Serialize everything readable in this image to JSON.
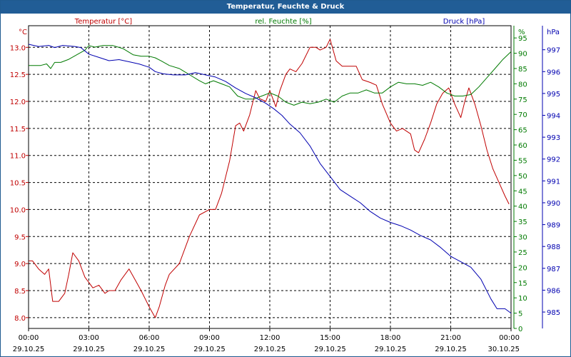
{
  "window": {
    "title": "Temperatur, Feuchte & Druck"
  },
  "colors": {
    "temperature": "#c00000",
    "humidity": "#007a00",
    "pressure": "#0000b0",
    "grid": "#000000",
    "title_bar": "#215d96"
  },
  "chart_data": {
    "type": "line",
    "title": "Temperatur, Feuchte & Druck",
    "x_hours_range": [
      0,
      24
    ],
    "x_ticks": [
      {
        "h": 0,
        "time": "00:00",
        "date": "29.10.25"
      },
      {
        "h": 3,
        "time": "03:00",
        "date": "29.10.25"
      },
      {
        "h": 6,
        "time": "06:00",
        "date": "29.10.25"
      },
      {
        "h": 9,
        "time": "09:00",
        "date": "29.10.25"
      },
      {
        "h": 12,
        "time": "12:00",
        "date": "29.10.25"
      },
      {
        "h": 15,
        "time": "15:00",
        "date": "29.10.25"
      },
      {
        "h": 18,
        "time": "18:00",
        "date": "29.10.25"
      },
      {
        "h": 21,
        "time": "21:00",
        "date": "29.10.25"
      },
      {
        "h": 24,
        "time": "00:00",
        "date": "30.10.25"
      }
    ],
    "axes": {
      "temperature": {
        "label": "Temperatur [°C]",
        "unit": "°C",
        "ylim": [
          7.8,
          13.4
        ],
        "ticks": [
          "13.0",
          "12.5",
          "12.0",
          "11.5",
          "11.0",
          "10.5",
          "10.0",
          "9.5",
          "9.0",
          "8.5",
          "8.0"
        ]
      },
      "humidity": {
        "label": "rel. Feuchte [%]",
        "unit": "%",
        "ylim": [
          0,
          99
        ],
        "ticks": [
          "95",
          "90",
          "85",
          "80",
          "75",
          "70",
          "65",
          "60",
          "55",
          "50",
          "45",
          "40",
          "35",
          "30",
          "25",
          "20",
          "15",
          "10",
          "5",
          "0"
        ],
        "top_label": "%"
      },
      "pressure": {
        "label": "Druck [hPa]",
        "unit": "hPa",
        "ylim": [
          984.25,
          998.1
        ],
        "ticks": [
          "997",
          "996",
          "995",
          "994",
          "993",
          "992",
          "991",
          "990",
          "989",
          "988",
          "987",
          "986",
          "985"
        ]
      }
    },
    "series": [
      {
        "name": "Temperatur [°C]",
        "axis": "temperature",
        "points": [
          [
            0,
            9.05
          ],
          [
            0.2,
            9.05
          ],
          [
            0.5,
            8.9
          ],
          [
            0.8,
            8.8
          ],
          [
            1.0,
            8.9
          ],
          [
            1.2,
            8.3
          ],
          [
            1.5,
            8.3
          ],
          [
            1.8,
            8.45
          ],
          [
            2.0,
            8.8
          ],
          [
            2.2,
            9.2
          ],
          [
            2.5,
            9.05
          ],
          [
            2.8,
            8.75
          ],
          [
            3.0,
            8.65
          ],
          [
            3.2,
            8.55
          ],
          [
            3.5,
            8.6
          ],
          [
            3.8,
            8.45
          ],
          [
            4.0,
            8.5
          ],
          [
            4.3,
            8.5
          ],
          [
            4.6,
            8.7
          ],
          [
            5.0,
            8.9
          ],
          [
            5.3,
            8.7
          ],
          [
            5.6,
            8.5
          ],
          [
            6.0,
            8.2
          ],
          [
            6.3,
            8.0
          ],
          [
            6.5,
            8.2
          ],
          [
            6.8,
            8.6
          ],
          [
            7.0,
            8.8
          ],
          [
            7.5,
            9.0
          ],
          [
            8.0,
            9.5
          ],
          [
            8.5,
            9.9
          ],
          [
            9.0,
            10.0
          ],
          [
            9.3,
            10.0
          ],
          [
            9.6,
            10.3
          ],
          [
            10.0,
            10.9
          ],
          [
            10.3,
            11.55
          ],
          [
            10.5,
            11.6
          ],
          [
            10.7,
            11.45
          ],
          [
            11.0,
            11.75
          ],
          [
            11.3,
            12.2
          ],
          [
            11.5,
            12.05
          ],
          [
            11.8,
            12.0
          ],
          [
            12.0,
            12.2
          ],
          [
            12.3,
            11.9
          ],
          [
            12.5,
            12.2
          ],
          [
            12.8,
            12.5
          ],
          [
            13.0,
            12.6
          ],
          [
            13.3,
            12.55
          ],
          [
            13.6,
            12.7
          ],
          [
            14.0,
            13.0
          ],
          [
            14.3,
            13.0
          ],
          [
            14.5,
            12.95
          ],
          [
            14.8,
            13.0
          ],
          [
            15.0,
            13.15
          ],
          [
            15.3,
            12.75
          ],
          [
            15.6,
            12.65
          ],
          [
            16.0,
            12.65
          ],
          [
            16.3,
            12.65
          ],
          [
            16.6,
            12.4
          ],
          [
            17.0,
            12.35
          ],
          [
            17.3,
            12.3
          ],
          [
            17.6,
            11.95
          ],
          [
            18.0,
            11.6
          ],
          [
            18.3,
            11.45
          ],
          [
            18.6,
            11.5
          ],
          [
            19.0,
            11.4
          ],
          [
            19.2,
            11.1
          ],
          [
            19.4,
            11.05
          ],
          [
            19.7,
            11.3
          ],
          [
            20.0,
            11.6
          ],
          [
            20.3,
            11.95
          ],
          [
            20.6,
            12.15
          ],
          [
            20.9,
            12.25
          ],
          [
            21.2,
            11.95
          ],
          [
            21.5,
            11.7
          ],
          [
            21.7,
            12.0
          ],
          [
            21.9,
            12.25
          ],
          [
            22.2,
            11.95
          ],
          [
            22.5,
            11.55
          ],
          [
            22.8,
            11.1
          ],
          [
            23.1,
            10.75
          ],
          [
            23.4,
            10.5
          ],
          [
            23.7,
            10.25
          ],
          [
            23.9,
            10.1
          ]
        ]
      },
      {
        "name": "rel. Feuchte [%]",
        "axis": "humidity",
        "points": [
          [
            0,
            86
          ],
          [
            0.3,
            86
          ],
          [
            0.6,
            86
          ],
          [
            0.9,
            86.5
          ],
          [
            1.1,
            85
          ],
          [
            1.3,
            87
          ],
          [
            1.6,
            87
          ],
          [
            2.0,
            88
          ],
          [
            2.4,
            89.5
          ],
          [
            2.8,
            91
          ],
          [
            3.0,
            92.5
          ],
          [
            3.3,
            92
          ],
          [
            3.7,
            92.5
          ],
          [
            4.2,
            92.5
          ],
          [
            4.7,
            91.5
          ],
          [
            5.2,
            89.5
          ],
          [
            5.6,
            89
          ],
          [
            6.0,
            89
          ],
          [
            6.3,
            88.5
          ],
          [
            6.6,
            87.5
          ],
          [
            7.0,
            86
          ],
          [
            7.5,
            85
          ],
          [
            8.0,
            83
          ],
          [
            8.5,
            81
          ],
          [
            8.8,
            80
          ],
          [
            9.2,
            81
          ],
          [
            9.6,
            80
          ],
          [
            10.0,
            79
          ],
          [
            10.4,
            76
          ],
          [
            10.8,
            75
          ],
          [
            11.2,
            75
          ],
          [
            11.6,
            76
          ],
          [
            12.0,
            77
          ],
          [
            12.4,
            76
          ],
          [
            12.8,
            74
          ],
          [
            13.2,
            73
          ],
          [
            13.6,
            74
          ],
          [
            14.0,
            73.5
          ],
          [
            14.4,
            74
          ],
          [
            14.8,
            75
          ],
          [
            15.2,
            74
          ],
          [
            15.6,
            76
          ],
          [
            16.0,
            77
          ],
          [
            16.4,
            77
          ],
          [
            16.8,
            78
          ],
          [
            17.2,
            77
          ],
          [
            17.6,
            77
          ],
          [
            18.0,
            79
          ],
          [
            18.4,
            80.5
          ],
          [
            18.8,
            80
          ],
          [
            19.2,
            80
          ],
          [
            19.6,
            79.5
          ],
          [
            20.0,
            80.5
          ],
          [
            20.4,
            79
          ],
          [
            20.8,
            77
          ],
          [
            21.2,
            76
          ],
          [
            21.6,
            76
          ],
          [
            22.0,
            76.5
          ],
          [
            22.4,
            79
          ],
          [
            22.8,
            82
          ],
          [
            23.2,
            85
          ],
          [
            23.6,
            88
          ],
          [
            24.0,
            90.5
          ]
        ]
      },
      {
        "name": "Druck [hPa]",
        "axis": "pressure",
        "points": [
          [
            0,
            997.25
          ],
          [
            0.5,
            997.15
          ],
          [
            1.0,
            997.2
          ],
          [
            1.3,
            997.1
          ],
          [
            1.7,
            997.2
          ],
          [
            2.3,
            997.15
          ],
          [
            2.6,
            997.1
          ],
          [
            3.0,
            996.8
          ],
          [
            3.5,
            996.65
          ],
          [
            4.0,
            996.5
          ],
          [
            4.5,
            996.55
          ],
          [
            5.0,
            996.45
          ],
          [
            5.5,
            996.35
          ],
          [
            6.0,
            996.2
          ],
          [
            6.3,
            996.0
          ],
          [
            6.7,
            995.9
          ],
          [
            7.2,
            995.85
          ],
          [
            7.8,
            995.85
          ],
          [
            8.3,
            995.95
          ],
          [
            8.8,
            995.85
          ],
          [
            9.3,
            995.75
          ],
          [
            9.8,
            995.55
          ],
          [
            10.3,
            995.25
          ],
          [
            10.8,
            995.0
          ],
          [
            11.3,
            994.8
          ],
          [
            11.8,
            994.55
          ],
          [
            12.2,
            994.3
          ],
          [
            12.6,
            994.0
          ],
          [
            13.0,
            993.6
          ],
          [
            13.5,
            993.2
          ],
          [
            14.0,
            992.6
          ],
          [
            14.5,
            991.8
          ],
          [
            15.0,
            991.2
          ],
          [
            15.5,
            990.6
          ],
          [
            16.0,
            990.3
          ],
          [
            16.5,
            990.0
          ],
          [
            17.0,
            989.6
          ],
          [
            17.5,
            989.3
          ],
          [
            18.0,
            989.1
          ],
          [
            18.5,
            988.95
          ],
          [
            19.0,
            988.75
          ],
          [
            19.5,
            988.5
          ],
          [
            20.0,
            988.3
          ],
          [
            20.5,
            987.95
          ],
          [
            21.0,
            987.55
          ],
          [
            21.5,
            987.3
          ],
          [
            22.0,
            987.05
          ],
          [
            22.5,
            986.5
          ],
          [
            23.0,
            985.6
          ],
          [
            23.3,
            985.15
          ],
          [
            23.7,
            985.15
          ],
          [
            24.0,
            984.95
          ]
        ]
      }
    ]
  }
}
